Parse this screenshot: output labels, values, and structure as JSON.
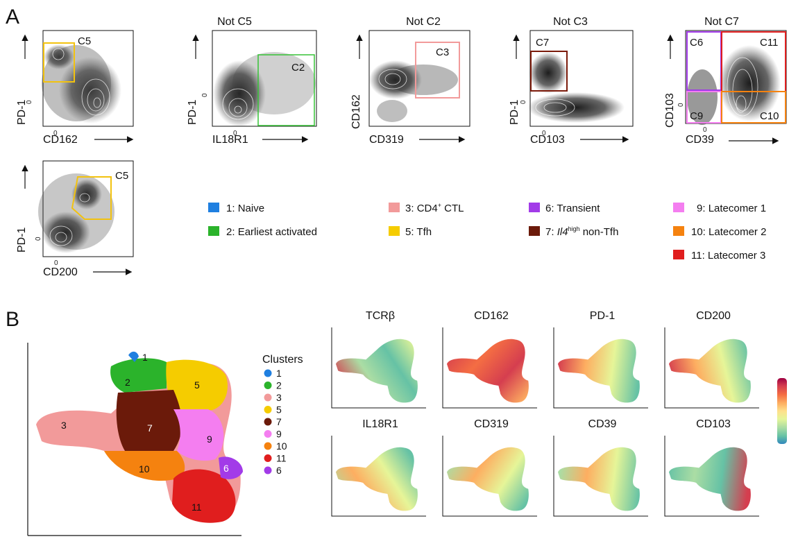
{
  "panel_a": {
    "letter": "A",
    "plots": [
      {
        "title": "",
        "x_label": "CD162",
        "y_label": "PD-1",
        "gates": [
          "C5"
        ]
      },
      {
        "title": "Not C5",
        "x_label": "IL18R1",
        "y_label": "PD-1",
        "gates": [
          "C2"
        ]
      },
      {
        "title": "Not C2",
        "x_label": "CD319",
        "y_label": "CD162",
        "gates": [
          "C3"
        ]
      },
      {
        "title": "Not C3",
        "x_label": "CD103",
        "y_label": "PD-1",
        "gates": [
          "C7"
        ]
      },
      {
        "title": "Not C7",
        "x_label": "CD39",
        "y_label": "CD103",
        "gates": [
          "C6",
          "C11",
          "C9",
          "C10"
        ]
      },
      {
        "title": "",
        "x_label": "CD200",
        "y_label": "PD-1",
        "gates": [
          "C5"
        ]
      }
    ],
    "tick_zero": "0",
    "legend": [
      {
        "num": "1:",
        "label": "Naive",
        "color": "#1f7fe0"
      },
      {
        "num": "2:",
        "label": "Earliest activated",
        "color": "#2bb32b"
      },
      {
        "num": "3:",
        "label": "CD4",
        "sup": "+",
        "label_after": " CTL",
        "color": "#f29a9a"
      },
      {
        "num": "5:",
        "label": "Tfh",
        "color": "#f5cc00"
      },
      {
        "num": "6:",
        "label": "Transient",
        "color": "#a23be8"
      },
      {
        "num": "7:",
        "label": "Il4",
        "sup": "high",
        "label_after": " non-Tfh",
        "color": "#6b1a0a"
      },
      {
        "num": "9:",
        "label": "Latecomer 1",
        "color": "#f47ef0"
      },
      {
        "num": "10:",
        "label": "Latecomer 2",
        "color": "#f5820f"
      },
      {
        "num": "11:",
        "label": "Latecomer 3",
        "color": "#e01e1e"
      }
    ]
  },
  "panel_b": {
    "letter": "B",
    "clusters_title": "Clusters",
    "clusters": [
      {
        "id": "1",
        "color": "#1f7fe0"
      },
      {
        "id": "2",
        "color": "#2bb32b"
      },
      {
        "id": "3",
        "color": "#f29a9a"
      },
      {
        "id": "5",
        "color": "#f5cc00"
      },
      {
        "id": "7",
        "color": "#6b1a0a"
      },
      {
        "id": "9",
        "color": "#f47ef0"
      },
      {
        "id": "10",
        "color": "#f5820f"
      },
      {
        "id": "11",
        "color": "#e01e1e"
      },
      {
        "id": "6",
        "color": "#a23be8"
      }
    ],
    "feature_plots": [
      "TCRβ",
      "CD162",
      "PD-1",
      "CD200",
      "IL18R1",
      "CD319",
      "CD39",
      "CD103"
    ],
    "colorbar": [
      "#9e0142",
      "#d53e4f",
      "#f46d43",
      "#fdae61",
      "#fee08b",
      "#e6f598",
      "#abdda4",
      "#66c2a5",
      "#3288bd",
      "#5e4fa2"
    ]
  }
}
